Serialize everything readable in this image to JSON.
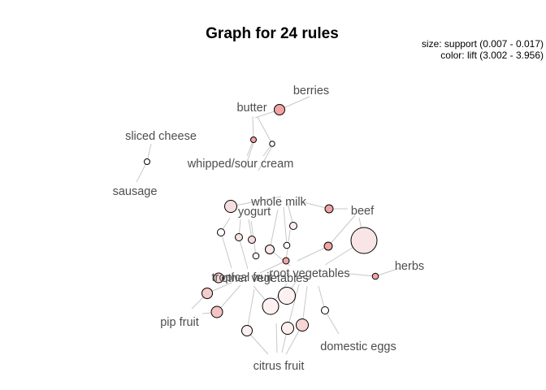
{
  "title": "Graph for 24 rules",
  "legend": {
    "size_line": "size: support (0.007 - 0.017)",
    "color_line": "color: lift (3.002 - 3.956)"
  },
  "items": {
    "berries": "berries",
    "butter": "butter",
    "sliced_cheese": "sliced cheese",
    "whipped_sour_cream": "whipped/sour cream",
    "sausage": "sausage",
    "whole_milk": "whole milk",
    "yogurt": "yogurt",
    "beef": "beef",
    "root_vegetables": "root vegetables",
    "other_vegetables": "other vegetables",
    "tropical_fruit": "tropical fruit",
    "herbs": "herbs",
    "pip_fruit": "pip fruit",
    "domestic_eggs": "domestic eggs",
    "citrus_fruit": "citrus fruit"
  },
  "colors": {
    "edge": "#c8c8c8",
    "label": "#4d4d4d",
    "low_lift": "#ffffff",
    "mid_lift": "#f7dede",
    "high_lift": "#f2a3a3"
  }
}
